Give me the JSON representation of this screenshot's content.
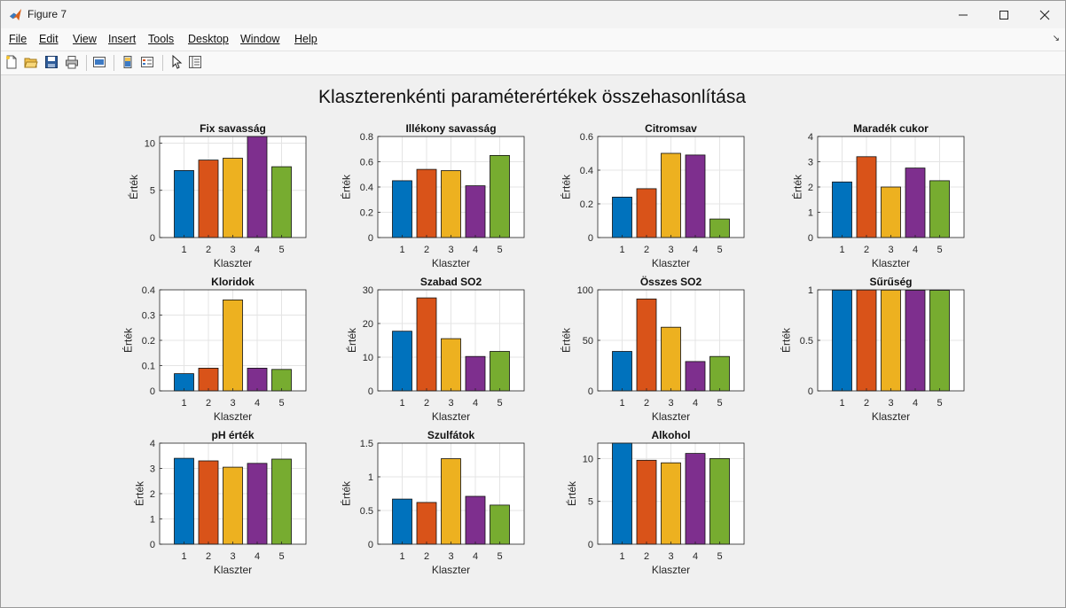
{
  "window": {
    "title": "Figure 7",
    "controls": [
      "minimize-icon",
      "maximize-icon",
      "close-icon"
    ]
  },
  "menu": [
    "File",
    "Edit",
    "View",
    "Insert",
    "Tools",
    "Desktop",
    "Window",
    "Help"
  ],
  "toolbar": {
    "icons": [
      "new-figure-icon",
      "open-file-icon",
      "save-icon",
      "print-icon",
      "link-plot-icon",
      "colorbar-icon",
      "legend-icon",
      "pointer-icon",
      "property-inspector-icon"
    ]
  },
  "colors": {
    "bars": [
      "#0072BD",
      "#D95319",
      "#EDB120",
      "#7E2F8E",
      "#77AC30"
    ]
  },
  "figure_title": "Klaszterenkénti paraméterértékek összehasonlítása",
  "chart_data": [
    {
      "type": "bar",
      "title": "Fix savasság",
      "xlabel": "Klaszter",
      "ylabel": "Érték",
      "categories": [
        "1",
        "2",
        "3",
        "4",
        "5"
      ],
      "values": [
        7.1,
        8.2,
        8.4,
        10.7,
        7.5
      ],
      "ylim": [
        0,
        10.7
      ],
      "yticks": [
        {
          "v": 0,
          "label": "0"
        },
        {
          "v": 5,
          "label": "5"
        },
        {
          "v": 10,
          "label": "10"
        }
      ],
      "grid": true
    },
    {
      "type": "bar",
      "title": "Illékony savasság",
      "xlabel": "Klaszter",
      "ylabel": "Érték",
      "categories": [
        "1",
        "2",
        "3",
        "4",
        "5"
      ],
      "values": [
        0.45,
        0.54,
        0.53,
        0.41,
        0.65
      ],
      "ylim": [
        0,
        0.8
      ],
      "yticks": [
        {
          "v": 0,
          "label": "0"
        },
        {
          "v": 0.2,
          "label": "0.2"
        },
        {
          "v": 0.4,
          "label": "0.4"
        },
        {
          "v": 0.6,
          "label": "0.6"
        },
        {
          "v": 0.8,
          "label": "0.8"
        }
      ],
      "grid": true
    },
    {
      "type": "bar",
      "title": "Citromsav",
      "xlabel": "Klaszter",
      "ylabel": "Érték",
      "categories": [
        "1",
        "2",
        "3",
        "4",
        "5"
      ],
      "values": [
        0.24,
        0.29,
        0.5,
        0.49,
        0.11
      ],
      "ylim": [
        0,
        0.6
      ],
      "yticks": [
        {
          "v": 0,
          "label": "0"
        },
        {
          "v": 0.2,
          "label": "0.2"
        },
        {
          "v": 0.4,
          "label": "0.4"
        },
        {
          "v": 0.6,
          "label": "0.6"
        }
      ],
      "grid": true
    },
    {
      "type": "bar",
      "title": "Maradék cukor",
      "xlabel": "Klaszter",
      "ylabel": "Érték",
      "categories": [
        "1",
        "2",
        "3",
        "4",
        "5"
      ],
      "values": [
        2.2,
        3.2,
        2.0,
        2.75,
        2.25
      ],
      "ylim": [
        0,
        4
      ],
      "yticks": [
        {
          "v": 0,
          "label": "0"
        },
        {
          "v": 1,
          "label": "1"
        },
        {
          "v": 2,
          "label": "2"
        },
        {
          "v": 3,
          "label": "3"
        },
        {
          "v": 4,
          "label": "4"
        }
      ],
      "grid": true
    },
    {
      "type": "bar",
      "title": "Kloridok",
      "xlabel": "Klaszter",
      "ylabel": "Érték",
      "categories": [
        "1",
        "2",
        "3",
        "4",
        "5"
      ],
      "values": [
        0.068,
        0.09,
        0.36,
        0.09,
        0.085
      ],
      "ylim": [
        0,
        0.4
      ],
      "yticks": [
        {
          "v": 0,
          "label": "0"
        },
        {
          "v": 0.1,
          "label": "0.1"
        },
        {
          "v": 0.2,
          "label": "0.2"
        },
        {
          "v": 0.3,
          "label": "0.3"
        },
        {
          "v": 0.4,
          "label": "0.4"
        }
      ],
      "grid": true
    },
    {
      "type": "bar",
      "title": "Szabad SO2",
      "xlabel": "Klaszter",
      "ylabel": "Érték",
      "categories": [
        "1",
        "2",
        "3",
        "4",
        "5"
      ],
      "values": [
        17.7,
        27.6,
        15.5,
        10.2,
        11.7
      ],
      "ylim": [
        0,
        30
      ],
      "yticks": [
        {
          "v": 0,
          "label": "0"
        },
        {
          "v": 10,
          "label": "10"
        },
        {
          "v": 20,
          "label": "20"
        },
        {
          "v": 30,
          "label": "30"
        }
      ],
      "grid": true
    },
    {
      "type": "bar",
      "title": "Összes SO2",
      "xlabel": "Klaszter",
      "ylabel": "Érték",
      "categories": [
        "1",
        "2",
        "3",
        "4",
        "5"
      ],
      "values": [
        39,
        91,
        63,
        29,
        34
      ],
      "ylim": [
        0,
        100
      ],
      "yticks": [
        {
          "v": 0,
          "label": "0"
        },
        {
          "v": 50,
          "label": "50"
        },
        {
          "v": 100,
          "label": "100"
        }
      ],
      "grid": true
    },
    {
      "type": "bar",
      "title": "Sűrűség",
      "xlabel": "Klaszter",
      "ylabel": "Érték",
      "categories": [
        "1",
        "2",
        "3",
        "4",
        "5"
      ],
      "values": [
        0.997,
        0.998,
        0.997,
        0.996,
        0.996
      ],
      "ylim": [
        0,
        1
      ],
      "yticks": [
        {
          "v": 0,
          "label": "0"
        },
        {
          "v": 0.5,
          "label": "0.5"
        },
        {
          "v": 1,
          "label": "1"
        }
      ],
      "grid": true
    },
    {
      "type": "bar",
      "title": "pH érték",
      "xlabel": "Klaszter",
      "ylabel": "Érték",
      "categories": [
        "1",
        "2",
        "3",
        "4",
        "5"
      ],
      "values": [
        3.4,
        3.3,
        3.05,
        3.2,
        3.37
      ],
      "ylim": [
        0,
        4
      ],
      "yticks": [
        {
          "v": 0,
          "label": "0"
        },
        {
          "v": 1,
          "label": "1"
        },
        {
          "v": 2,
          "label": "2"
        },
        {
          "v": 3,
          "label": "3"
        },
        {
          "v": 4,
          "label": "4"
        }
      ],
      "grid": true
    },
    {
      "type": "bar",
      "title": "Szulfátok",
      "xlabel": "Klaszter",
      "ylabel": "Érték",
      "categories": [
        "1",
        "2",
        "3",
        "4",
        "5"
      ],
      "values": [
        0.67,
        0.62,
        1.27,
        0.71,
        0.58
      ],
      "ylim": [
        0,
        1.5
      ],
      "yticks": [
        {
          "v": 0,
          "label": "0"
        },
        {
          "v": 0.5,
          "label": "0.5"
        },
        {
          "v": 1,
          "label": "1"
        },
        {
          "v": 1.5,
          "label": "1.5"
        }
      ],
      "grid": true
    },
    {
      "type": "bar",
      "title": "Alkohol",
      "xlabel": "Klaszter",
      "ylabel": "Érték",
      "categories": [
        "1",
        "2",
        "3",
        "4",
        "5"
      ],
      "values": [
        11.8,
        9.8,
        9.5,
        10.6,
        10.0
      ],
      "ylim": [
        0,
        11.8
      ],
      "yticks": [
        {
          "v": 0,
          "label": "0"
        },
        {
          "v": 5,
          "label": "5"
        },
        {
          "v": 10,
          "label": "10"
        }
      ],
      "grid": true
    }
  ]
}
